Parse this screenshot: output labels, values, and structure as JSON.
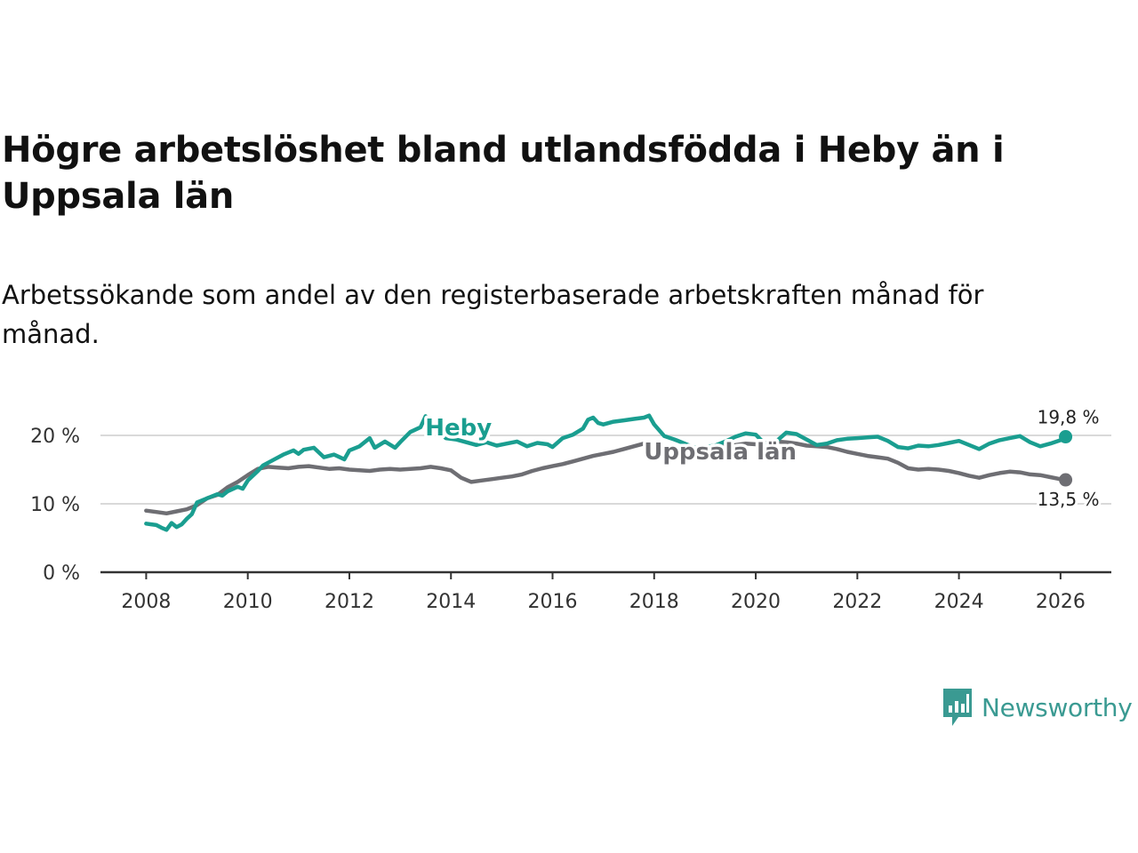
{
  "title": "Högre arbetslöshet bland utlandsfödda i Heby än i Uppsala län",
  "subtitle": "Arbetssökande som andel av den registerbaserade arbetskraften månad för månad.",
  "logo_text": "Newsworthy",
  "chart_data": {
    "type": "line",
    "title": "Högre arbetslöshet bland utlandsfödda i Heby än i Uppsala län",
    "subtitle": "Arbetssökande som andel av den registerbaserade arbetskraften månad för månad.",
    "xlabel": "",
    "ylabel": "",
    "xlim": [
      2007.1,
      2027.0
    ],
    "ylim": [
      0,
      20
    ],
    "y_ticks": [
      {
        "value": 0,
        "label": "0 %"
      },
      {
        "value": 10,
        "label": "10 %"
      },
      {
        "value": 20,
        "label": "20 %"
      }
    ],
    "x_ticks": [
      2008,
      2010,
      2012,
      2014,
      2016,
      2018,
      2020,
      2022,
      2024,
      2026
    ],
    "grid": true,
    "series": [
      {
        "name": "Heby",
        "color": "#1a9e90",
        "label": "Heby",
        "end_label": "19,8 %",
        "x": [
          2008.0,
          2008.1,
          2008.2,
          2008.3,
          2008.4,
          2008.5,
          2008.6,
          2008.7,
          2008.8,
          2008.9,
          2009.0,
          2009.2,
          2009.4,
          2009.5,
          2009.6,
          2009.8,
          2009.9,
          2010.0,
          2010.2,
          2010.3,
          2010.5,
          2010.7,
          2010.9,
          2011.0,
          2011.1,
          2011.3,
          2011.5,
          2011.7,
          2011.9,
          2012.0,
          2012.2,
          2012.4,
          2012.5,
          2012.7,
          2012.9,
          2013.0,
          2013.2,
          2013.4,
          2013.5,
          2013.7,
          2013.9,
          2014.1,
          2014.3,
          2014.5,
          2014.7,
          2014.9,
          2015.1,
          2015.3,
          2015.5,
          2015.7,
          2015.9,
          2016.0,
          2016.2,
          2016.4,
          2016.6,
          2016.7,
          2016.8,
          2016.9,
          2017.0,
          2017.2,
          2017.4,
          2017.6,
          2017.8,
          2017.9,
          2018.0,
          2018.2,
          2018.4,
          2018.6,
          2018.8,
          2019.0,
          2019.2,
          2019.4,
          2019.6,
          2019.8,
          2020.0,
          2020.2,
          2020.4,
          2020.6,
          2020.8,
          2021.0,
          2021.2,
          2021.4,
          2021.6,
          2021.8,
          2022.0,
          2022.2,
          2022.4,
          2022.6,
          2022.8,
          2023.0,
          2023.2,
          2023.4,
          2023.6,
          2023.8,
          2024.0,
          2024.2,
          2024.4,
          2024.6,
          2024.8,
          2025.0,
          2025.2,
          2025.4,
          2025.6,
          2025.8,
          2026.0,
          2026.1
        ],
        "values": [
          7.1,
          7.0,
          6.9,
          6.5,
          6.2,
          7.2,
          6.6,
          7.0,
          7.8,
          8.5,
          10.2,
          10.8,
          11.4,
          11.2,
          11.8,
          12.5,
          12.2,
          13.4,
          14.8,
          15.6,
          16.4,
          17.2,
          17.8,
          17.3,
          17.9,
          18.2,
          16.8,
          17.2,
          16.5,
          17.8,
          18.4,
          19.6,
          18.2,
          19.1,
          18.2,
          19.0,
          20.5,
          21.2,
          22.8,
          21.0,
          19.6,
          19.4,
          19.0,
          18.6,
          19.0,
          18.5,
          18.8,
          19.1,
          18.4,
          18.9,
          18.7,
          18.3,
          19.6,
          20.1,
          21.0,
          22.3,
          22.6,
          21.8,
          21.6,
          22.0,
          22.2,
          22.4,
          22.6,
          22.9,
          21.6,
          19.9,
          19.4,
          18.8,
          18.2,
          18.3,
          18.5,
          19.1,
          19.8,
          20.3,
          20.1,
          18.6,
          19.1,
          20.4,
          20.2,
          19.4,
          18.6,
          18.8,
          19.3,
          19.5,
          19.6,
          19.7,
          19.8,
          19.2,
          18.3,
          18.1,
          18.5,
          18.4,
          18.6,
          18.9,
          19.2,
          18.6,
          18.0,
          18.8,
          19.3,
          19.6,
          19.9,
          19.0,
          18.4,
          18.8,
          19.3,
          19.8
        ]
      },
      {
        "name": "Uppsala län",
        "color": "#6e6e73",
        "label": "Uppsala län",
        "end_label": "13,5 %",
        "x": [
          2008.0,
          2008.2,
          2008.4,
          2008.6,
          2008.8,
          2009.0,
          2009.2,
          2009.4,
          2009.6,
          2009.8,
          2010.0,
          2010.2,
          2010.4,
          2010.6,
          2010.8,
          2011.0,
          2011.2,
          2011.4,
          2011.6,
          2011.8,
          2012.0,
          2012.2,
          2012.4,
          2012.6,
          2012.8,
          2013.0,
          2013.2,
          2013.4,
          2013.6,
          2013.8,
          2014.0,
          2014.2,
          2014.4,
          2014.6,
          2014.8,
          2015.0,
          2015.2,
          2015.4,
          2015.6,
          2015.8,
          2016.0,
          2016.2,
          2016.4,
          2016.6,
          2016.8,
          2017.0,
          2017.2,
          2017.4,
          2017.6,
          2017.8,
          2018.0,
          2018.2,
          2018.4,
          2018.6,
          2018.8,
          2019.0,
          2019.2,
          2019.4,
          2019.6,
          2019.8,
          2020.0,
          2020.2,
          2020.4,
          2020.6,
          2020.8,
          2021.0,
          2021.2,
          2021.4,
          2021.6,
          2021.8,
          2022.0,
          2022.2,
          2022.4,
          2022.6,
          2022.8,
          2023.0,
          2023.2,
          2023.4,
          2023.6,
          2023.8,
          2024.0,
          2024.2,
          2024.4,
          2024.6,
          2024.8,
          2025.0,
          2025.2,
          2025.4,
          2025.6,
          2025.8,
          2026.0,
          2026.1
        ],
        "values": [
          9.0,
          8.8,
          8.6,
          8.9,
          9.2,
          9.8,
          10.8,
          11.3,
          12.4,
          13.2,
          14.2,
          15.1,
          15.4,
          15.3,
          15.2,
          15.4,
          15.5,
          15.3,
          15.1,
          15.2,
          15.0,
          14.9,
          14.8,
          15.0,
          15.1,
          15.0,
          15.1,
          15.2,
          15.4,
          15.2,
          14.9,
          13.8,
          13.2,
          13.4,
          13.6,
          13.8,
          14.0,
          14.3,
          14.8,
          15.2,
          15.5,
          15.8,
          16.2,
          16.6,
          17.0,
          17.3,
          17.6,
          18.0,
          18.4,
          18.8,
          18.6,
          17.6,
          17.0,
          17.1,
          17.4,
          17.8,
          18.2,
          18.4,
          18.6,
          18.8,
          18.7,
          18.9,
          19.1,
          19.0,
          18.8,
          18.5,
          18.4,
          18.3,
          18.0,
          17.6,
          17.3,
          17.0,
          16.8,
          16.6,
          16.0,
          15.2,
          15.0,
          15.1,
          15.0,
          14.8,
          14.5,
          14.1,
          13.8,
          14.2,
          14.5,
          14.7,
          14.6,
          14.3,
          14.2,
          13.9,
          13.6,
          13.5
        ]
      }
    ]
  }
}
